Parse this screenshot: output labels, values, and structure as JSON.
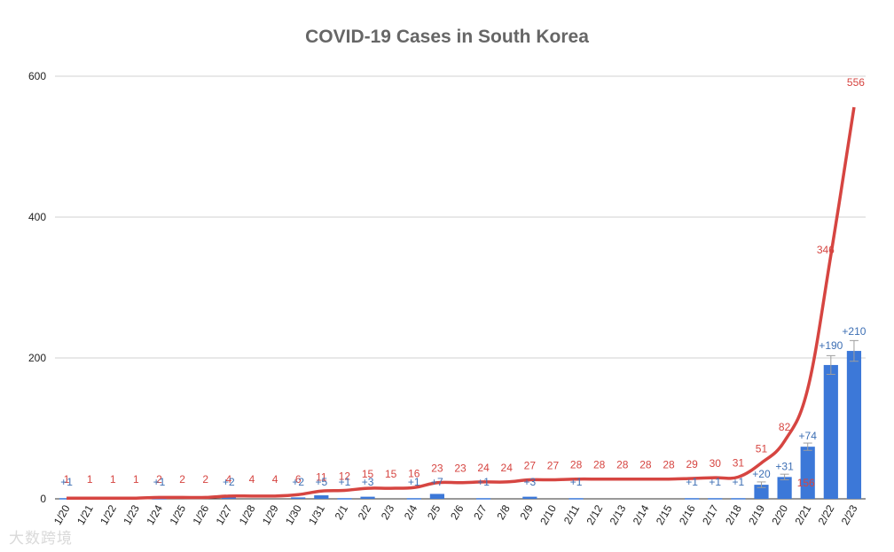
{
  "chart_data": {
    "type": "bar+line",
    "title": "COVID-19 Cases in South Korea",
    "categories": [
      "1/20",
      "1/21",
      "1/22",
      "1/23",
      "1/24",
      "1/25",
      "1/26",
      "1/27",
      "1/28",
      "1/29",
      "1/30",
      "1/31",
      "2/1",
      "2/2",
      "2/3",
      "2/4",
      "2/5",
      "2/6",
      "2/7",
      "2/8",
      "2/9",
      "2/10",
      "2/11",
      "2/12",
      "2/13",
      "2/14",
      "2/15",
      "2/16",
      "2/17",
      "2/18",
      "2/19",
      "2/20",
      "2/21",
      "2/22",
      "2/23"
    ],
    "yticks": [
      "0",
      "200",
      "400",
      "600"
    ],
    "ylim": [
      0,
      600
    ],
    "grid": true,
    "series": [
      {
        "type": "line",
        "color": "#d64541",
        "values": [
          1,
          1,
          1,
          1,
          2,
          2,
          2,
          4,
          4,
          4,
          6,
          11,
          12,
          15,
          15,
          16,
          23,
          23,
          24,
          24,
          27,
          27,
          28,
          28,
          28,
          28,
          28,
          29,
          30,
          31,
          51,
          82,
          156,
          346,
          556
        ],
        "labels": [
          "1",
          "1",
          "1",
          "1",
          "2",
          "2",
          "2",
          "4",
          "4",
          "4",
          "6",
          "11",
          "12",
          "15",
          "15",
          "16",
          "23",
          "23",
          "24",
          "24",
          "27",
          "27",
          "28",
          "28",
          "28",
          "28",
          "28",
          "29",
          "30",
          "31",
          "51",
          "82",
          "156",
          "346",
          "556"
        ]
      },
      {
        "type": "bar",
        "color": "#3c78d8",
        "values": [
          1,
          0,
          0,
          0,
          1,
          0,
          0,
          2,
          0,
          0,
          2,
          5,
          1,
          3,
          0,
          1,
          7,
          0,
          1,
          0,
          3,
          0,
          1,
          0,
          0,
          0,
          0,
          1,
          1,
          1,
          20,
          31,
          74,
          190,
          210
        ],
        "labels": [
          "+1",
          "",
          "",
          "",
          "+1",
          "",
          "",
          "+2",
          "",
          "",
          "+2",
          "+5",
          "+1",
          "+3",
          "",
          "+1",
          "+7",
          "",
          "+1",
          "",
          "+3",
          "",
          "+1",
          "",
          "",
          "",
          "",
          "+1",
          "+1",
          "+1",
          "+20",
          "+31",
          "+74",
          "+190",
          "+210"
        ]
      }
    ]
  },
  "watermark": "大数跨境"
}
